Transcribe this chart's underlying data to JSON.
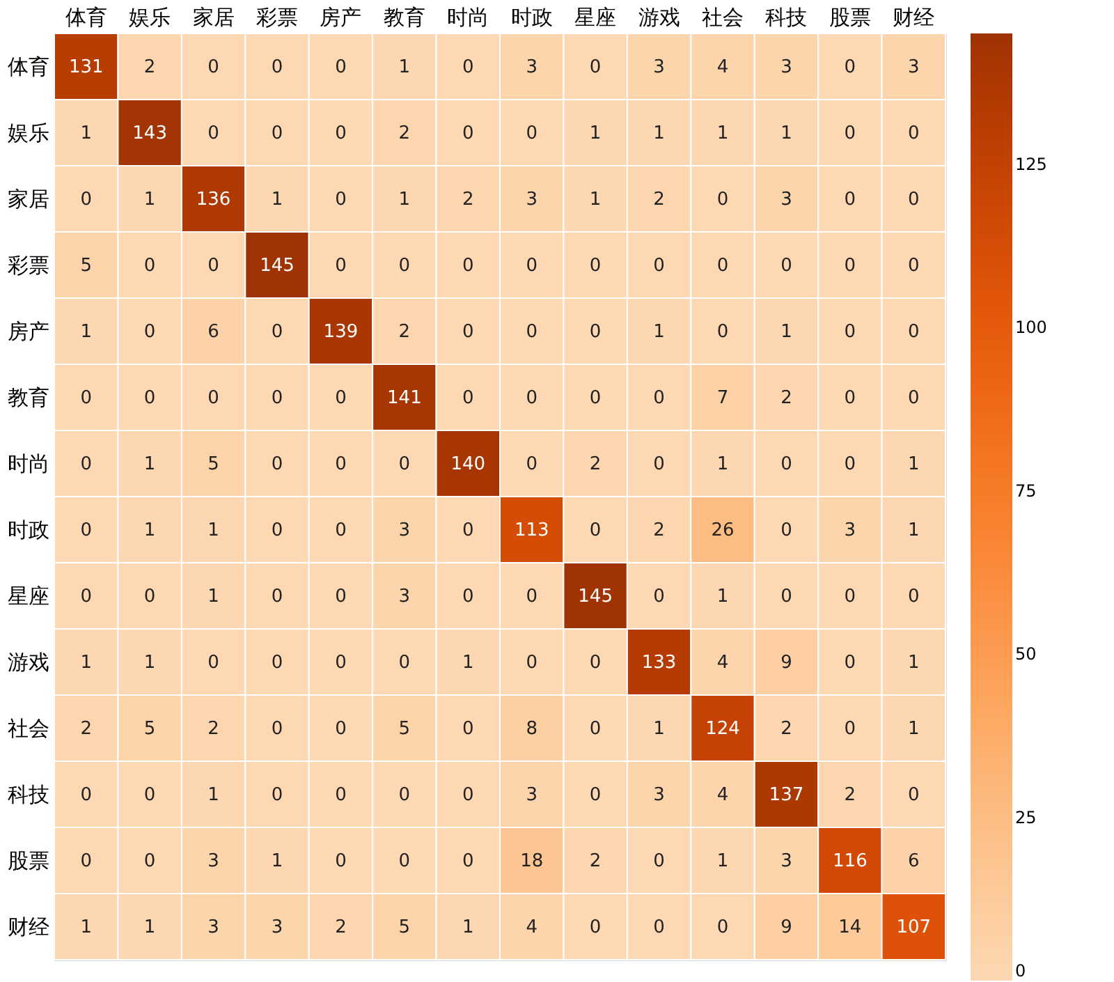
{
  "chart_data": {
    "type": "heatmap",
    "categories": [
      "体育",
      "娱乐",
      "家居",
      "彩票",
      "房产",
      "教育",
      "时尚",
      "时政",
      "星座",
      "游戏",
      "社会",
      "科技",
      "股票",
      "财经"
    ],
    "y_categories": [
      "体育",
      "娱乐",
      "家居",
      "彩票",
      "房产",
      "教育",
      "时尚",
      "时政",
      "星座",
      "游戏",
      "社会",
      "科技",
      "股票",
      "财经"
    ],
    "cells": [
      [
        131,
        2,
        0,
        0,
        0,
        1,
        0,
        3,
        0,
        3,
        4,
        3,
        0,
        3
      ],
      [
        1,
        143,
        0,
        0,
        0,
        2,
        0,
        0,
        1,
        1,
        1,
        1,
        0,
        0
      ],
      [
        0,
        1,
        136,
        1,
        0,
        1,
        2,
        3,
        1,
        2,
        0,
        3,
        0,
        0
      ],
      [
        5,
        0,
        0,
        145,
        0,
        0,
        0,
        0,
        0,
        0,
        0,
        0,
        0,
        0
      ],
      [
        1,
        0,
        6,
        0,
        139,
        2,
        0,
        0,
        0,
        1,
        0,
        1,
        0,
        0
      ],
      [
        0,
        0,
        0,
        0,
        0,
        141,
        0,
        0,
        0,
        0,
        7,
        2,
        0,
        0
      ],
      [
        0,
        1,
        5,
        0,
        0,
        0,
        140,
        0,
        2,
        0,
        1,
        0,
        0,
        1
      ],
      [
        0,
        1,
        1,
        0,
        0,
        3,
        0,
        113,
        0,
        2,
        26,
        0,
        3,
        1
      ],
      [
        0,
        0,
        1,
        0,
        0,
        3,
        0,
        0,
        145,
        0,
        1,
        0,
        0,
        0
      ],
      [
        1,
        1,
        0,
        0,
        0,
        0,
        1,
        0,
        0,
        133,
        4,
        9,
        0,
        1
      ],
      [
        2,
        5,
        2,
        0,
        0,
        5,
        0,
        8,
        0,
        1,
        124,
        2,
        0,
        1
      ],
      [
        0,
        0,
        1,
        0,
        0,
        0,
        0,
        3,
        0,
        3,
        4,
        137,
        2,
        0
      ],
      [
        0,
        0,
        3,
        1,
        0,
        0,
        0,
        18,
        2,
        0,
        1,
        3,
        116,
        6
      ],
      [
        1,
        1,
        3,
        3,
        2,
        5,
        1,
        4,
        0,
        0,
        0,
        9,
        14,
        107
      ]
    ],
    "data_labels": true,
    "clim": [
      0,
      145
    ],
    "cticks": [
      0,
      25,
      50,
      75,
      100,
      125
    ]
  }
}
